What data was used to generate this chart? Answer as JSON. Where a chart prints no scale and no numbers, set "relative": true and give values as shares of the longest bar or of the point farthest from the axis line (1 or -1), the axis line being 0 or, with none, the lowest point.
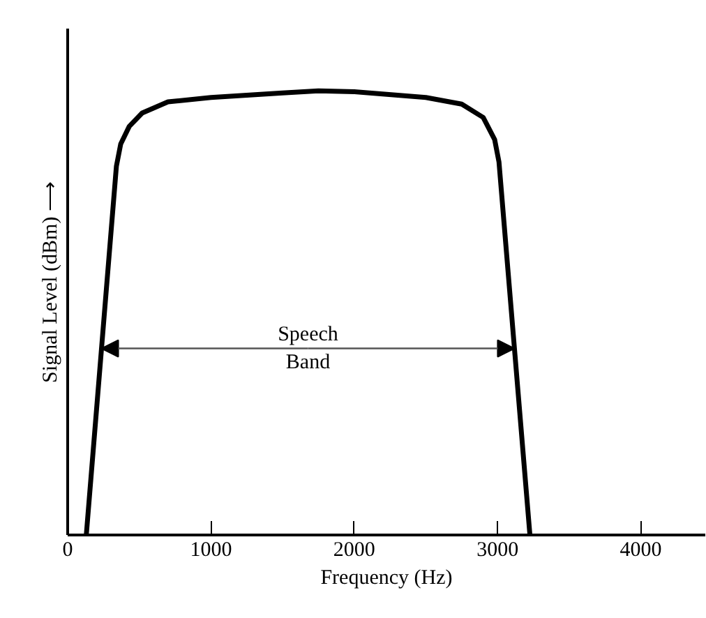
{
  "chart_data": {
    "type": "line",
    "relative": true,
    "xlabel": "Frequency (Hz)",
    "ylabel": "Signal Level (dBm) ⟶",
    "xlim": [
      0,
      4450
    ],
    "xticks": [
      0,
      1000,
      2000,
      3000,
      4000
    ],
    "grid": false,
    "marker": "none",
    "line_style": "solid",
    "series": [
      {
        "color": "#000000",
        "x": [
          130,
          340,
          370,
          430,
          520,
          700,
          1000,
          1500,
          1750,
          2000,
          2500,
          2750,
          2900,
          2980,
          3010,
          3226
        ],
        "values": [
          0,
          0.83,
          0.88,
          0.92,
          0.95,
          0.975,
          0.985,
          0.995,
          1.0,
          0.998,
          0.985,
          0.97,
          0.94,
          0.89,
          0.84,
          0
        ]
      }
    ],
    "annotations": [
      "Speech\nBand"
    ]
  }
}
